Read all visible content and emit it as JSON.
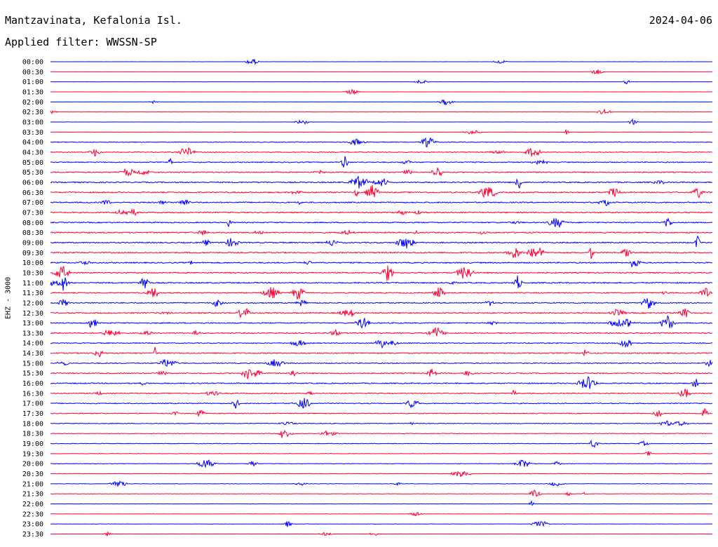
{
  "header": {
    "station": "Mantzavinata, Kefalonia Isl.",
    "date": "2024-04-06",
    "filter": "Applied filter: WWSSN-SP",
    "channel_label": "EHZ - 3000"
  },
  "colors": {
    "even_row": "#0000ff",
    "odd_row": "#ff0033",
    "text": "#000000"
  },
  "chart_data": {
    "type": "line",
    "subtype": "helicorder",
    "row_labels": [
      "00:00",
      "00:30",
      "01:00",
      "01:30",
      "02:00",
      "02:30",
      "03:00",
      "03:30",
      "04:00",
      "04:30",
      "05:00",
      "05:30",
      "06:00",
      "06:30",
      "07:00",
      "07:30",
      "08:00",
      "08:30",
      "09:00",
      "09:30",
      "10:00",
      "10:30",
      "11:00",
      "11:30",
      "12:00",
      "12:30",
      "13:00",
      "13:30",
      "14:00",
      "14:30",
      "15:00",
      "15:30",
      "16:00",
      "16:30",
      "17:00",
      "17:30",
      "18:00",
      "18:30",
      "19:00",
      "19:30",
      "20:00",
      "20:30",
      "21:00",
      "21:30",
      "22:00",
      "22:30",
      "23:00",
      "23:30"
    ],
    "row_minutes": 30,
    "row_noise_level": [
      0.05,
      0.05,
      0.05,
      0.05,
      0.06,
      0.06,
      0.07,
      0.1,
      0.3,
      0.35,
      0.4,
      0.45,
      0.5,
      0.5,
      0.5,
      0.5,
      0.45,
      0.5,
      0.5,
      0.5,
      0.5,
      0.5,
      0.5,
      0.45,
      0.45,
      0.5,
      0.45,
      0.45,
      0.4,
      0.45,
      0.4,
      0.45,
      0.45,
      0.4,
      0.4,
      0.35,
      0.3,
      0.25,
      0.25,
      0.2,
      0.2,
      0.2,
      0.18,
      0.15,
      0.15,
      0.12,
      0.12,
      0.1
    ]
  }
}
